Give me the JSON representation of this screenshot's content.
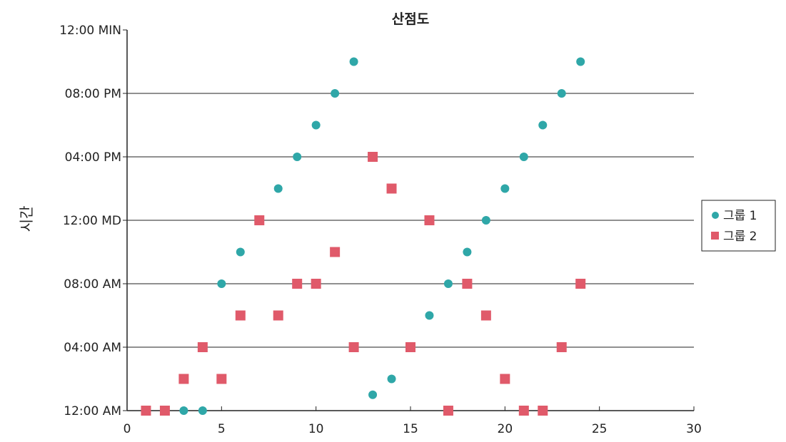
{
  "chart_data": {
    "type": "scatter",
    "title": "산점도",
    "xlabel": "",
    "ylabel": "시간",
    "xlim": [
      0,
      30
    ],
    "ylim": [
      0,
      24
    ],
    "x_ticks": [
      0,
      5,
      10,
      15,
      20,
      25,
      30
    ],
    "y_ticks": [
      {
        "value": 0,
        "label": "12:00 AM"
      },
      {
        "value": 4,
        "label": "04:00 AM"
      },
      {
        "value": 8,
        "label": "08:00 AM"
      },
      {
        "value": 12,
        "label": "12:00 MD"
      },
      {
        "value": 16,
        "label": "04:00 PM"
      },
      {
        "value": 20,
        "label": "08:00 PM"
      },
      {
        "value": 24,
        "label": "12:00 MIN"
      }
    ],
    "grid": "horizontal",
    "legend_position": "right",
    "colors": {
      "series1": "#2fa7a8",
      "series2": "#e05a6a"
    },
    "series": [
      {
        "name": "그룹 1",
        "marker": "circle",
        "points": [
          [
            3,
            0
          ],
          [
            4,
            0
          ],
          [
            5,
            8
          ],
          [
            6,
            10
          ],
          [
            8,
            14
          ],
          [
            9,
            16
          ],
          [
            10,
            18
          ],
          [
            11,
            20
          ],
          [
            12,
            22
          ],
          [
            13,
            1
          ],
          [
            14,
            2
          ],
          [
            16,
            6
          ],
          [
            17,
            8
          ],
          [
            18,
            10
          ],
          [
            19,
            12
          ],
          [
            20,
            14
          ],
          [
            21,
            16
          ],
          [
            22,
            18
          ],
          [
            23,
            20
          ],
          [
            24,
            22
          ]
        ]
      },
      {
        "name": "그룹 2",
        "marker": "square",
        "points": [
          [
            1,
            0
          ],
          [
            2,
            0
          ],
          [
            3,
            2
          ],
          [
            4,
            4
          ],
          [
            5,
            2
          ],
          [
            6,
            6
          ],
          [
            7,
            12
          ],
          [
            8,
            6
          ],
          [
            9,
            8
          ],
          [
            10,
            8
          ],
          [
            11,
            10
          ],
          [
            12,
            4
          ],
          [
            13,
            16
          ],
          [
            14,
            14
          ],
          [
            15,
            4
          ],
          [
            16,
            12
          ],
          [
            17,
            0
          ],
          [
            18,
            8
          ],
          [
            19,
            6
          ],
          [
            20,
            2
          ],
          [
            21,
            0
          ],
          [
            22,
            0
          ],
          [
            23,
            4
          ],
          [
            24,
            8
          ]
        ]
      }
    ]
  }
}
